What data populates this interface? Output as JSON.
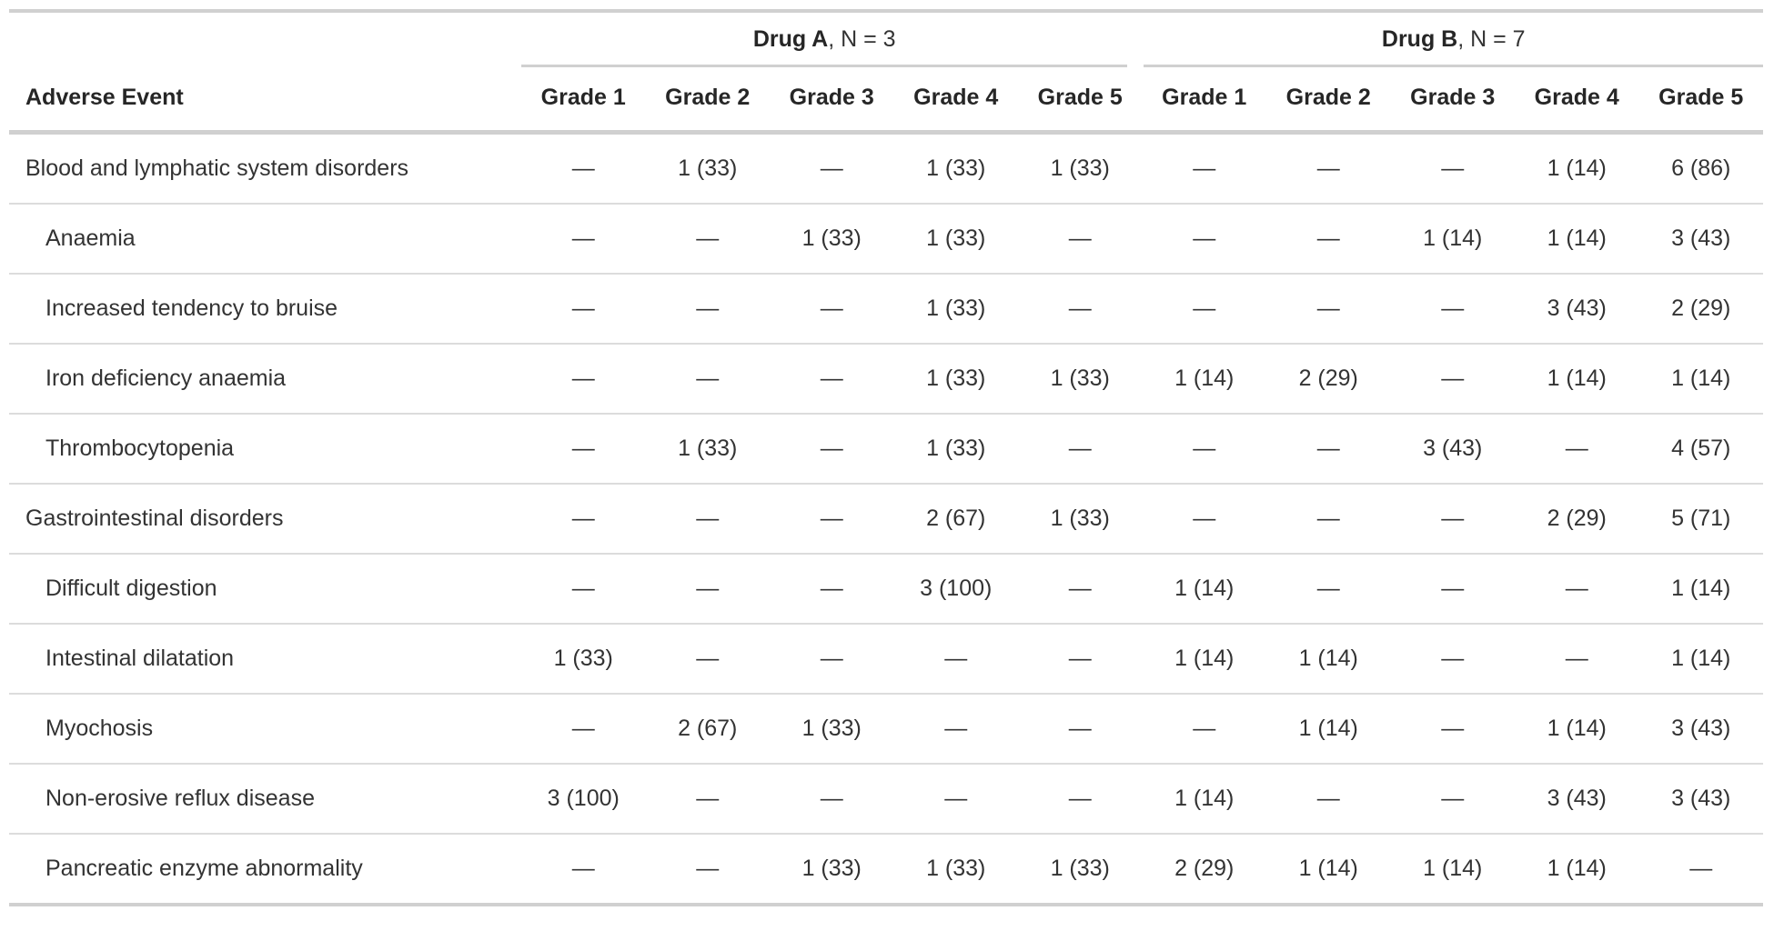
{
  "table": {
    "row_header_label": "Adverse Event",
    "groups": [
      {
        "name": "Drug A",
        "n_label": ", N = 3"
      },
      {
        "name": "Drug B",
        "n_label": ", N = 7"
      }
    ],
    "grade_headers": [
      "Grade 1",
      "Grade 2",
      "Grade 3",
      "Grade 4",
      "Grade 5",
      "Grade 1",
      "Grade 2",
      "Grade 3",
      "Grade 4",
      "Grade 5"
    ],
    "rows": [
      {
        "event": "Blood and lymphatic system disorders",
        "indent": false,
        "values": [
          "—",
          "1 (33)",
          "—",
          "1 (33)",
          "1 (33)",
          "—",
          "—",
          "—",
          "1 (14)",
          "6 (86)"
        ]
      },
      {
        "event": "Anaemia",
        "indent": true,
        "values": [
          "—",
          "—",
          "1 (33)",
          "1 (33)",
          "—",
          "—",
          "—",
          "1 (14)",
          "1 (14)",
          "3 (43)"
        ]
      },
      {
        "event": "Increased tendency to bruise",
        "indent": true,
        "values": [
          "—",
          "—",
          "—",
          "1 (33)",
          "—",
          "—",
          "—",
          "—",
          "3 (43)",
          "2 (29)"
        ]
      },
      {
        "event": "Iron deficiency anaemia",
        "indent": true,
        "values": [
          "—",
          "—",
          "—",
          "1 (33)",
          "1 (33)",
          "1 (14)",
          "2 (29)",
          "—",
          "1 (14)",
          "1 (14)"
        ]
      },
      {
        "event": "Thrombocytopenia",
        "indent": true,
        "values": [
          "—",
          "1 (33)",
          "—",
          "1 (33)",
          "—",
          "—",
          "—",
          "3 (43)",
          "—",
          "4 (57)"
        ]
      },
      {
        "event": "Gastrointestinal disorders",
        "indent": false,
        "values": [
          "—",
          "—",
          "—",
          "2 (67)",
          "1 (33)",
          "—",
          "—",
          "—",
          "2 (29)",
          "5 (71)"
        ]
      },
      {
        "event": "Difficult digestion",
        "indent": true,
        "values": [
          "—",
          "—",
          "—",
          "3 (100)",
          "—",
          "1 (14)",
          "—",
          "—",
          "—",
          "1 (14)"
        ]
      },
      {
        "event": "Intestinal dilatation",
        "indent": true,
        "values": [
          "1 (33)",
          "—",
          "—",
          "—",
          "—",
          "1 (14)",
          "1 (14)",
          "—",
          "—",
          "1 (14)"
        ]
      },
      {
        "event": "Myochosis",
        "indent": true,
        "values": [
          "—",
          "2 (67)",
          "1 (33)",
          "—",
          "—",
          "—",
          "1 (14)",
          "—",
          "1 (14)",
          "3 (43)"
        ]
      },
      {
        "event": "Non-erosive reflux disease",
        "indent": true,
        "values": [
          "3 (100)",
          "—",
          "—",
          "—",
          "—",
          "1 (14)",
          "—",
          "—",
          "3 (43)",
          "3 (43)"
        ]
      },
      {
        "event": "Pancreatic enzyme abnormality",
        "indent": true,
        "values": [
          "—",
          "—",
          "1 (33)",
          "1 (33)",
          "1 (33)",
          "2 (29)",
          "1 (14)",
          "1 (14)",
          "1 (14)",
          "—"
        ]
      }
    ]
  },
  "colors": {
    "rule_heavy": "#d0d0d0",
    "rule_light": "#dcdcdc",
    "body_text": "#333333",
    "header_text": "#262626"
  }
}
